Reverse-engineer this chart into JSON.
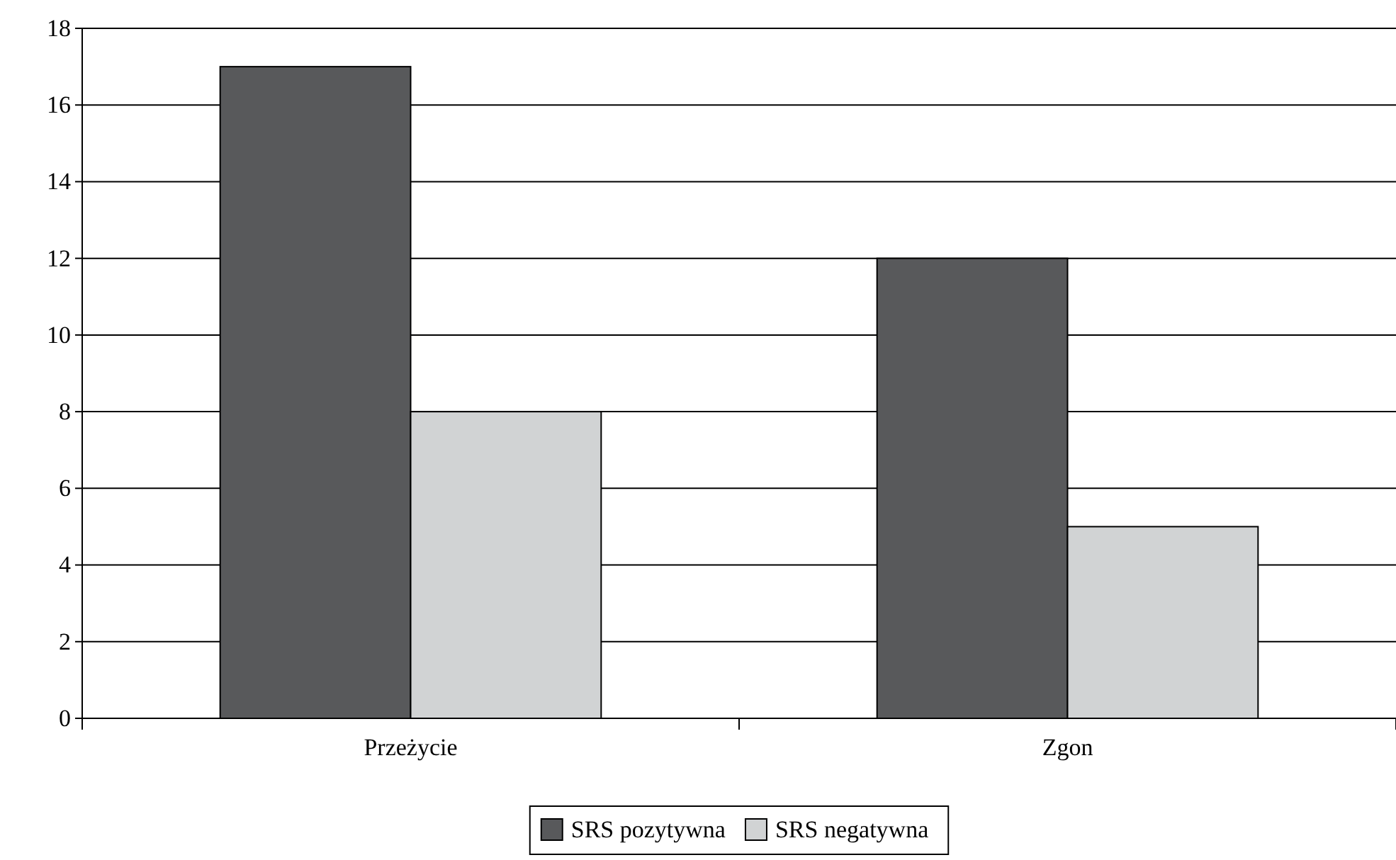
{
  "chart_data": {
    "type": "bar",
    "categories": [
      "Przeżycie",
      "Zgon"
    ],
    "series": [
      {
        "name": "SRS pozytywna",
        "color": "#58595b",
        "values": [
          17,
          12
        ]
      },
      {
        "name": "SRS negatywna",
        "color": "#d1d3d4",
        "values": [
          8,
          5
        ]
      }
    ],
    "ylim": [
      0,
      18
    ],
    "yticks": [
      0,
      2,
      4,
      6,
      8,
      10,
      12,
      14,
      16,
      18
    ],
    "grid": "y",
    "legend": "bottom"
  }
}
